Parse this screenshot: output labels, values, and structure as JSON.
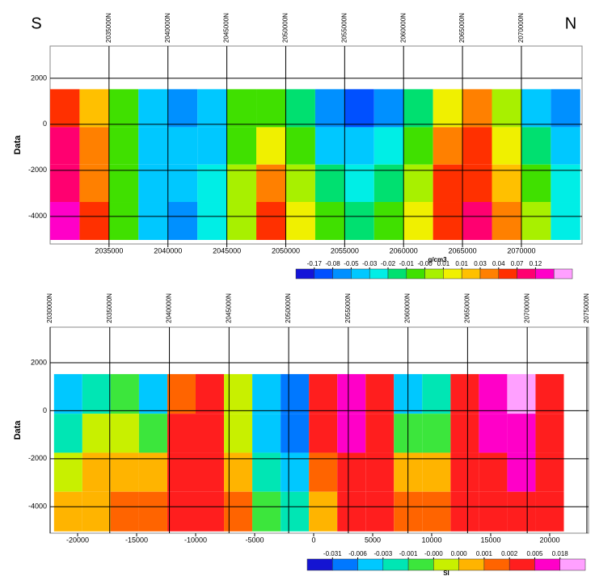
{
  "header": {
    "left": "S",
    "right": "N"
  },
  "chart_data": [
    {
      "type": "heatmap",
      "ylabel": "Data",
      "xlim": [
        2030000,
        2075150
      ],
      "x2lim": [
        2030000,
        2075150
      ],
      "ylim": [
        -5200,
        3400
      ],
      "xticks": [
        2035000,
        2040000,
        2045000,
        2050000,
        2055000,
        2060000,
        2065000,
        2070000
      ],
      "x2ticks": [
        {
          "value": 2035000,
          "label": "2035000N"
        },
        {
          "value": 2040000,
          "label": "2040000N"
        },
        {
          "value": 2045000,
          "label": "2045000N"
        },
        {
          "value": 2050000,
          "label": "2050000N"
        },
        {
          "value": 2055000,
          "label": "2055000N"
        },
        {
          "value": 2060000,
          "label": "2060000N"
        },
        {
          "value": 2065000,
          "label": "2065000N"
        },
        {
          "value": 2070000,
          "label": "2070000N"
        }
      ],
      "yticks": [
        -4000,
        -2000,
        0,
        2000
      ],
      "grid": true,
      "x": [
        2031250,
        2033750,
        2036250,
        2038750,
        2041250,
        2043750,
        2046250,
        2048750,
        2051250,
        2053750,
        2056250,
        2058750,
        2061250,
        2063750,
        2066250,
        2068750,
        2071250,
        2073750
      ],
      "y": [
        700,
        -950,
        -2550,
        -4200
      ],
      "z": [
        [
          0.05,
          0.02,
          -0.01,
          -0.04,
          -0.08,
          -0.04,
          -0.01,
          -0.01,
          -0.02,
          -0.08,
          -0.1,
          -0.06,
          -0.02,
          0.01,
          0.03,
          0.0,
          -0.04,
          -0.06
        ],
        [
          0.07,
          0.03,
          -0.01,
          -0.04,
          -0.05,
          -0.04,
          -0.01,
          0.01,
          -0.01,
          -0.04,
          -0.05,
          -0.03,
          -0.01,
          0.03,
          0.04,
          0.01,
          -0.02,
          -0.04
        ],
        [
          0.1,
          0.03,
          -0.01,
          -0.04,
          -0.05,
          -0.03,
          0.0,
          0.03,
          0.0,
          -0.02,
          -0.03,
          -0.02,
          0.0,
          0.04,
          0.06,
          0.02,
          -0.01,
          -0.03
        ],
        [
          0.12,
          0.04,
          -0.01,
          -0.04,
          -0.06,
          -0.03,
          0.0,
          0.04,
          0.01,
          -0.01,
          -0.02,
          -0.01,
          0.01,
          0.04,
          0.08,
          0.03,
          0.0,
          -0.03
        ]
      ],
      "colorbar": {
        "label": "g/cm3",
        "ticks": [
          {
            "value": -0.17,
            "label": "-0.17"
          },
          {
            "value": -0.08,
            "label": "-0.08"
          },
          {
            "value": -0.05,
            "label": "-0.05"
          },
          {
            "value": -0.03,
            "label": "-0.03"
          },
          {
            "value": -0.02,
            "label": "-0.02"
          },
          {
            "value": -0.01,
            "label": "-0.01"
          },
          {
            "value": -0.004,
            "label": "-0.00"
          },
          {
            "value": 0.006,
            "label": "0.01"
          },
          {
            "value": 0.012,
            "label": "0.01"
          },
          {
            "value": 0.03,
            "label": "0.03"
          },
          {
            "value": 0.04,
            "label": "0.04"
          },
          {
            "value": 0.07,
            "label": "0.07"
          },
          {
            "value": 0.12,
            "label": "0.12"
          }
        ],
        "colors": [
          "#1414d8",
          "#0050ff",
          "#0090ff",
          "#00c8ff",
          "#00eee6",
          "#00e070",
          "#40e000",
          "#a8f000",
          "#f0f000",
          "#ffc000",
          "#ff8000",
          "#ff3000",
          "#ff0070",
          "#ff00c8",
          "#ffa0ff"
        ]
      }
    },
    {
      "type": "heatmap",
      "ylabel": "Data",
      "xlim": [
        -22330,
        23290
      ],
      "x2lim": [
        2030000,
        2075140
      ],
      "ylim": [
        -5100,
        3480
      ],
      "xticks": [
        -20000,
        -15000,
        -10000,
        -5000,
        0,
        5000,
        10000,
        15000,
        20000
      ],
      "x2ticks": [
        {
          "value": 2030000,
          "label": "2030000N"
        },
        {
          "value": 2035000,
          "label": "2035000N"
        },
        {
          "value": 2040000,
          "label": "2040000N"
        },
        {
          "value": 2045000,
          "label": "2045000N"
        },
        {
          "value": 2050000,
          "label": "2050000N"
        },
        {
          "value": 2055000,
          "label": "2055000N"
        },
        {
          "value": 2060000,
          "label": "2060000N"
        },
        {
          "value": 2065000,
          "label": "2065000N"
        },
        {
          "value": 2070000,
          "label": "2070000N"
        },
        {
          "value": 2075000,
          "label": "2075000N"
        }
      ],
      "yticks": [
        -4000,
        -2000,
        0,
        2000
      ],
      "grid": true,
      "x": [
        -20800,
        -18400,
        -16000,
        -13600,
        -11200,
        -8800,
        -6400,
        -4000,
        -1600,
        800,
        3200,
        5600,
        8000,
        10400,
        12800,
        15200,
        17600,
        20000
      ],
      "y": [
        700,
        -950,
        -2550,
        -4200
      ],
      "z": [
        [
          -0.006,
          -0.002,
          -0.0005,
          -0.004,
          0.001,
          0.002,
          0.0,
          -0.005,
          -0.01,
          0.003,
          0.01,
          0.002,
          -0.004,
          -0.002,
          0.002,
          0.01,
          0.02,
          0.002
        ],
        [
          -0.002,
          0.0,
          0.0,
          -0.001,
          0.002,
          0.002,
          0.0,
          -0.004,
          -0.008,
          0.002,
          0.005,
          0.002,
          -0.001,
          -0.001,
          0.003,
          0.006,
          0.01,
          0.003
        ],
        [
          0.0,
          0.0005,
          0.0008,
          0.0008,
          0.002,
          0.002,
          0.0005,
          -0.002,
          -0.004,
          0.001,
          0.003,
          0.002,
          0.0008,
          0.0008,
          0.004,
          0.004,
          0.005,
          0.003
        ],
        [
          0.0008,
          0.0008,
          0.0015,
          0.0015,
          0.002,
          0.002,
          0.001,
          -0.001,
          -0.002,
          0.0008,
          0.002,
          0.002,
          0.0015,
          0.0015,
          0.004,
          0.004,
          0.004,
          0.003
        ]
      ],
      "colorbar": {
        "label": "SI",
        "ticks": [
          {
            "value": -0.031,
            "label": "-0.031"
          },
          {
            "value": -0.006,
            "label": "-0.006"
          },
          {
            "value": -0.003,
            "label": "-0.003"
          },
          {
            "value": -0.001,
            "label": "-0.001"
          },
          {
            "value": -0.0004,
            "label": "-0.000"
          },
          {
            "value": 0.0004,
            "label": "0.000"
          },
          {
            "value": 0.001,
            "label": "0.001"
          },
          {
            "value": 0.002,
            "label": "0.002"
          },
          {
            "value": 0.005,
            "label": "0.005"
          },
          {
            "value": 0.018,
            "label": "0.018"
          }
        ],
        "colors": [
          "#1414d2",
          "#0078ff",
          "#00c8ff",
          "#00e6b4",
          "#3ce63c",
          "#c8f000",
          "#ffb400",
          "#ff6400",
          "#ff1e1e",
          "#ff00c8",
          "#ffa0ff"
        ]
      }
    }
  ]
}
